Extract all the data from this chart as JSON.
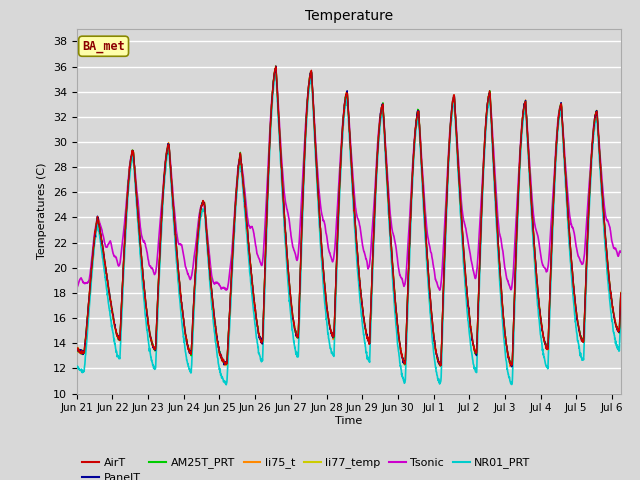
{
  "title": "Temperature",
  "ylabel": "Temperatures (C)",
  "xlabel": "Time",
  "ylim": [
    10,
    39
  ],
  "yticks": [
    10,
    12,
    14,
    16,
    18,
    20,
    22,
    24,
    26,
    28,
    30,
    32,
    34,
    36,
    38
  ],
  "background_color": "#d8d8d8",
  "plot_bg_color": "#d8d8d8",
  "grid_color": "#ffffff",
  "station_label": "BA_met",
  "station_label_color": "#8b0000",
  "station_box_color": "#ffffaa",
  "legend_entries": [
    "AirT",
    "PanelT",
    "AM25T_PRT",
    "li75_t",
    "li77_temp",
    "Tsonic",
    "NR01_PRT"
  ],
  "line_colors": {
    "AirT": "#cc0000",
    "PanelT": "#000099",
    "AM25T_PRT": "#00cc00",
    "li75_t": "#ff8800",
    "li77_temp": "#cccc00",
    "Tsonic": "#cc00cc",
    "NR01_PRT": "#00cccc"
  },
  "line_widths": {
    "AirT": 1.0,
    "PanelT": 1.0,
    "AM25T_PRT": 1.0,
    "li75_t": 1.0,
    "li77_temp": 1.0,
    "Tsonic": 1.2,
    "NR01_PRT": 1.2
  },
  "n_points": 2160,
  "n_days_total": 15.25
}
